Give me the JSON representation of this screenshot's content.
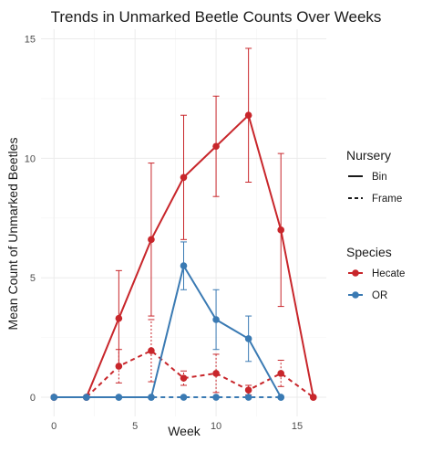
{
  "chart_data": {
    "type": "line",
    "title": "Trends in Unmarked Beetle Counts Over Weeks",
    "xlabel": "Week",
    "ylabel": "Mean Count of Unmarked Beetles",
    "xlim": [
      -0.8,
      16.8
    ],
    "ylim": [
      -0.8,
      15.4
    ],
    "x_ticks": [
      0,
      5,
      10,
      15
    ],
    "y_ticks": [
      0,
      5,
      10,
      15
    ],
    "grid": true,
    "legend_position": "right",
    "legends": [
      {
        "title": "Nursery",
        "entries": [
          {
            "label": "Bin",
            "linetype": "solid"
          },
          {
            "label": "Frame",
            "linetype": "dashed"
          }
        ]
      },
      {
        "title": "Species",
        "entries": [
          {
            "label": "Hecate",
            "color": "#c8262b"
          },
          {
            "label": "OR",
            "color": "#3a7ab3"
          }
        ]
      }
    ],
    "series": [
      {
        "species": "Hecate",
        "nursery": "Bin",
        "linetype": "solid",
        "color": "#c8262b",
        "x": [
          0,
          2,
          4,
          6,
          8,
          10,
          12,
          14,
          16
        ],
        "y": [
          0,
          0,
          3.3,
          6.6,
          9.2,
          10.5,
          11.8,
          7.0,
          0
        ],
        "err": [
          0,
          0,
          2.0,
          3.2,
          2.6,
          2.1,
          2.8,
          3.2,
          0
        ]
      },
      {
        "species": "Hecate",
        "nursery": "Frame",
        "linetype": "dashed",
        "color": "#c8262b",
        "x": [
          0,
          2,
          4,
          6,
          8,
          10,
          12,
          14,
          16
        ],
        "y": [
          0,
          0,
          1.3,
          1.95,
          0.8,
          1.0,
          0.3,
          1.0,
          0
        ],
        "err": [
          0,
          0,
          0.7,
          1.3,
          0.3,
          0.8,
          0.2,
          0.55,
          0
        ]
      },
      {
        "species": "OR",
        "nursery": "Bin",
        "linetype": "solid",
        "color": "#3a7ab3",
        "x": [
          0,
          2,
          4,
          6,
          8,
          10,
          12,
          14
        ],
        "y": [
          0,
          0,
          0,
          0,
          5.5,
          3.25,
          2.45,
          0
        ],
        "err": [
          0,
          0,
          0,
          0,
          1.0,
          1.25,
          0.95,
          0
        ]
      },
      {
        "species": "OR",
        "nursery": "Frame",
        "linetype": "dashed",
        "color": "#3a7ab3",
        "x": [
          0,
          2,
          4,
          6,
          8,
          10,
          12,
          14
        ],
        "y": [
          0,
          0,
          0,
          0,
          0,
          0,
          0,
          0
        ],
        "err": [
          0,
          0,
          0,
          0,
          0,
          0,
          0,
          0
        ]
      }
    ]
  }
}
